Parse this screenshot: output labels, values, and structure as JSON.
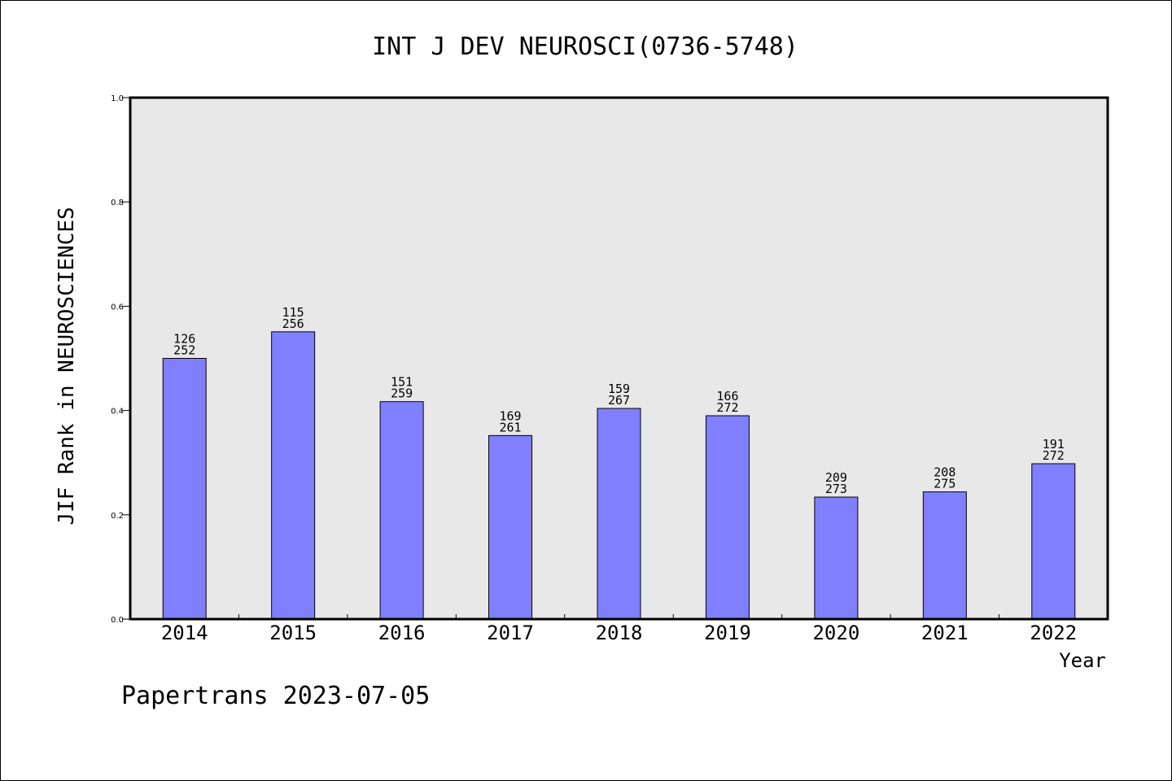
{
  "chart_data": {
    "type": "bar",
    "title": "INT J DEV NEUROSCI(0736-5748)",
    "ylabel": "JIF Rank in NEUROSCIENCES",
    "xlabel": "Year",
    "categories": [
      "2014",
      "2015",
      "2016",
      "2017",
      "2018",
      "2019",
      "2020",
      "2021",
      "2022"
    ],
    "values": [
      0.5,
      0.551,
      0.417,
      0.352,
      0.404,
      0.39,
      0.234,
      0.244,
      0.298
    ],
    "rank": [
      "126",
      "115",
      "151",
      "169",
      "159",
      "166",
      "209",
      "208",
      "191"
    ],
    "total": [
      "252",
      "256",
      "259",
      "261",
      "267",
      "272",
      "273",
      "275",
      "272"
    ],
    "ylim": [
      0,
      1.0
    ],
    "yticks": [
      "0.0",
      "0.2",
      "0.4",
      "0.6",
      "0.8",
      "1.0"
    ],
    "grid": false,
    "colors": {
      "bar": "#8080ff",
      "plot_bg": "#e8e8e8"
    }
  },
  "footer": "Papertrans 2023-07-05"
}
